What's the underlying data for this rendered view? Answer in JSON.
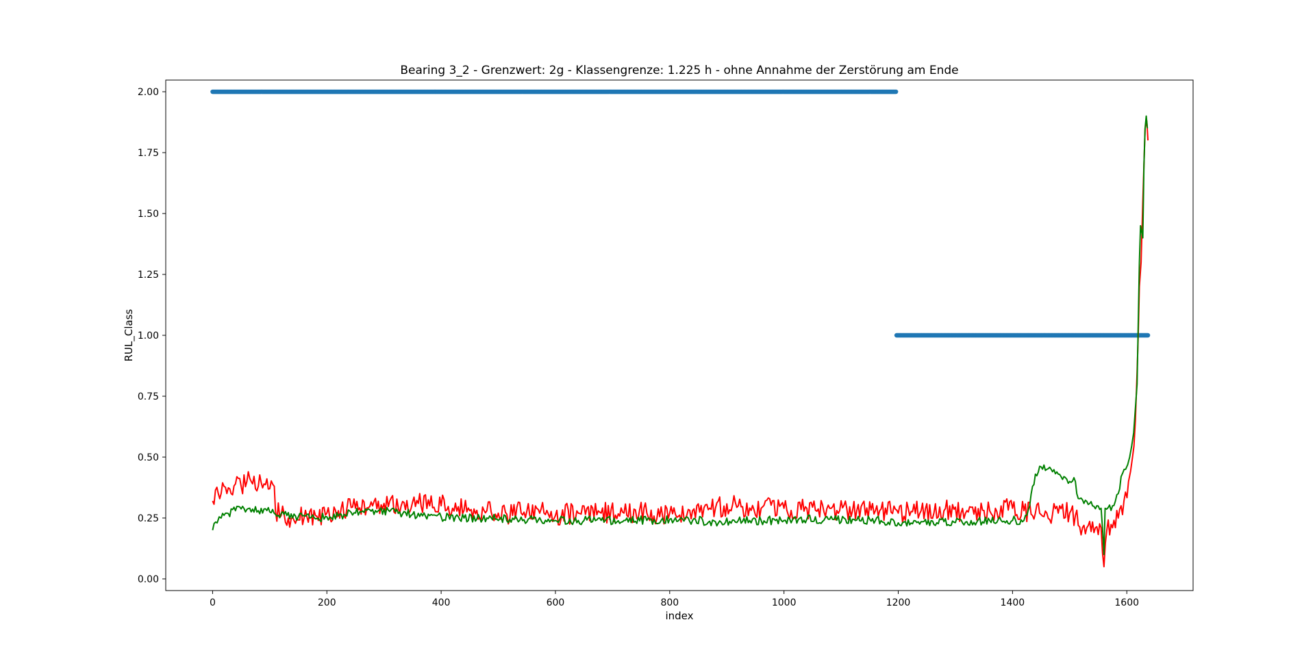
{
  "chart_data": {
    "type": "line",
    "title": "Bearing 3_2 - Grenzwert: 2g - Klassengrenze: 1.225 h - ohne Annahme der Zerstörung am Ende",
    "xlabel": "index",
    "ylabel": "RUL_Class",
    "xlim": [
      -82,
      1716
    ],
    "ylim": [
      -0.0479,
      2.0479
    ],
    "x_ticks": [
      0,
      200,
      400,
      600,
      800,
      1000,
      1200,
      1400,
      1600
    ],
    "x_tick_labels": [
      "0",
      "200",
      "400",
      "600",
      "800",
      "1000",
      "1200",
      "1400",
      "1600"
    ],
    "y_ticks": [
      0.0,
      0.25,
      0.5,
      0.75,
      1.0,
      1.25,
      1.5,
      1.75,
      2.0
    ],
    "y_tick_labels": [
      "0.00",
      "0.25",
      "0.50",
      "0.75",
      "1.00",
      "1.25",
      "1.50",
      "1.75",
      "2.00"
    ],
    "grid": false,
    "legend": "none",
    "series": [
      {
        "kind": "scatter",
        "color": "#1f77b4",
        "segments": [
          {
            "x_start": 0,
            "x_end": 1196,
            "y": 2.0
          },
          {
            "x_start": 1197,
            "x_end": 1637,
            "y": 1.0
          }
        ]
      },
      {
        "kind": "line",
        "color": "#ff0000",
        "points": [
          [
            0,
            0.32
          ],
          [
            10,
            0.35
          ],
          [
            20,
            0.38
          ],
          [
            30,
            0.37
          ],
          [
            40,
            0.39
          ],
          [
            50,
            0.38
          ],
          [
            60,
            0.4
          ],
          [
            70,
            0.39
          ],
          [
            80,
            0.38
          ],
          [
            90,
            0.39
          ],
          [
            100,
            0.37
          ],
          [
            108,
            0.38
          ],
          [
            110,
            0.28
          ],
          [
            120,
            0.26
          ],
          [
            140,
            0.255
          ],
          [
            160,
            0.25
          ],
          [
            180,
            0.26
          ],
          [
            200,
            0.27
          ],
          [
            220,
            0.28
          ],
          [
            250,
            0.29
          ],
          [
            280,
            0.3
          ],
          [
            300,
            0.31
          ],
          [
            330,
            0.3
          ],
          [
            360,
            0.31
          ],
          [
            380,
            0.3
          ],
          [
            400,
            0.3
          ],
          [
            420,
            0.29
          ],
          [
            450,
            0.28
          ],
          [
            480,
            0.28
          ],
          [
            500,
            0.27
          ],
          [
            540,
            0.27
          ],
          [
            580,
            0.27
          ],
          [
            600,
            0.26
          ],
          [
            640,
            0.27
          ],
          [
            680,
            0.27
          ],
          [
            720,
            0.27
          ],
          [
            760,
            0.27
          ],
          [
            800,
            0.27
          ],
          [
            840,
            0.28
          ],
          [
            880,
            0.29
          ],
          [
            920,
            0.3
          ],
          [
            960,
            0.29
          ],
          [
            1000,
            0.29
          ],
          [
            1040,
            0.29
          ],
          [
            1080,
            0.29
          ],
          [
            1120,
            0.28
          ],
          [
            1160,
            0.28
          ],
          [
            1200,
            0.27
          ],
          [
            1240,
            0.28
          ],
          [
            1280,
            0.28
          ],
          [
            1320,
            0.28
          ],
          [
            1360,
            0.28
          ],
          [
            1400,
            0.29
          ],
          [
            1420,
            0.28
          ],
          [
            1440,
            0.27
          ],
          [
            1460,
            0.27
          ],
          [
            1480,
            0.27
          ],
          [
            1500,
            0.27
          ],
          [
            1510,
            0.26
          ],
          [
            1515,
            0.22
          ],
          [
            1530,
            0.21
          ],
          [
            1545,
            0.21
          ],
          [
            1555,
            0.21
          ],
          [
            1560,
            0.05
          ],
          [
            1565,
            0.2
          ],
          [
            1575,
            0.21
          ],
          [
            1585,
            0.25
          ],
          [
            1595,
            0.32
          ],
          [
            1603,
            0.4
          ],
          [
            1610,
            0.5
          ],
          [
            1615,
            0.65
          ],
          [
            1618,
            0.85
          ],
          [
            1620,
            1.0
          ],
          [
            1622,
            1.2
          ],
          [
            1625,
            1.3
          ],
          [
            1628,
            1.55
          ],
          [
            1630,
            1.7
          ],
          [
            1632,
            1.85
          ],
          [
            1635,
            1.88
          ],
          [
            1637,
            1.8
          ]
        ]
      },
      {
        "kind": "line",
        "color": "#008000",
        "points": [
          [
            0,
            0.2
          ],
          [
            8,
            0.23
          ],
          [
            15,
            0.25
          ],
          [
            25,
            0.27
          ],
          [
            40,
            0.28
          ],
          [
            60,
            0.285
          ],
          [
            80,
            0.28
          ],
          [
            100,
            0.275
          ],
          [
            110,
            0.265
          ],
          [
            130,
            0.26
          ],
          [
            150,
            0.255
          ],
          [
            170,
            0.25
          ],
          [
            200,
            0.255
          ],
          [
            230,
            0.265
          ],
          [
            260,
            0.275
          ],
          [
            290,
            0.28
          ],
          [
            320,
            0.275
          ],
          [
            350,
            0.265
          ],
          [
            380,
            0.26
          ],
          [
            400,
            0.255
          ],
          [
            440,
            0.25
          ],
          [
            480,
            0.25
          ],
          [
            520,
            0.245
          ],
          [
            560,
            0.245
          ],
          [
            600,
            0.24
          ],
          [
            640,
            0.24
          ],
          [
            680,
            0.24
          ],
          [
            720,
            0.24
          ],
          [
            760,
            0.24
          ],
          [
            800,
            0.245
          ],
          [
            840,
            0.24
          ],
          [
            880,
            0.235
          ],
          [
            920,
            0.24
          ],
          [
            960,
            0.24
          ],
          [
            1000,
            0.24
          ],
          [
            1040,
            0.245
          ],
          [
            1080,
            0.245
          ],
          [
            1120,
            0.245
          ],
          [
            1160,
            0.24
          ],
          [
            1200,
            0.23
          ],
          [
            1240,
            0.235
          ],
          [
            1280,
            0.235
          ],
          [
            1320,
            0.235
          ],
          [
            1360,
            0.24
          ],
          [
            1400,
            0.24
          ],
          [
            1420,
            0.24
          ],
          [
            1430,
            0.3
          ],
          [
            1435,
            0.38
          ],
          [
            1440,
            0.43
          ],
          [
            1450,
            0.46
          ],
          [
            1460,
            0.45
          ],
          [
            1470,
            0.44
          ],
          [
            1480,
            0.43
          ],
          [
            1490,
            0.42
          ],
          [
            1500,
            0.4
          ],
          [
            1510,
            0.4
          ],
          [
            1515,
            0.33
          ],
          [
            1525,
            0.31
          ],
          [
            1540,
            0.3
          ],
          [
            1555,
            0.29
          ],
          [
            1560,
            0.1
          ],
          [
            1562,
            0.29
          ],
          [
            1575,
            0.3
          ],
          [
            1585,
            0.35
          ],
          [
            1590,
            0.42
          ],
          [
            1598,
            0.45
          ],
          [
            1605,
            0.5
          ],
          [
            1612,
            0.6
          ],
          [
            1618,
            0.8
          ],
          [
            1620,
            1.05
          ],
          [
            1622,
            1.3
          ],
          [
            1624,
            1.45
          ],
          [
            1628,
            1.4
          ],
          [
            1630,
            1.7
          ],
          [
            1632,
            1.85
          ],
          [
            1634,
            1.9
          ],
          [
            1636,
            1.85
          ]
        ]
      }
    ]
  }
}
